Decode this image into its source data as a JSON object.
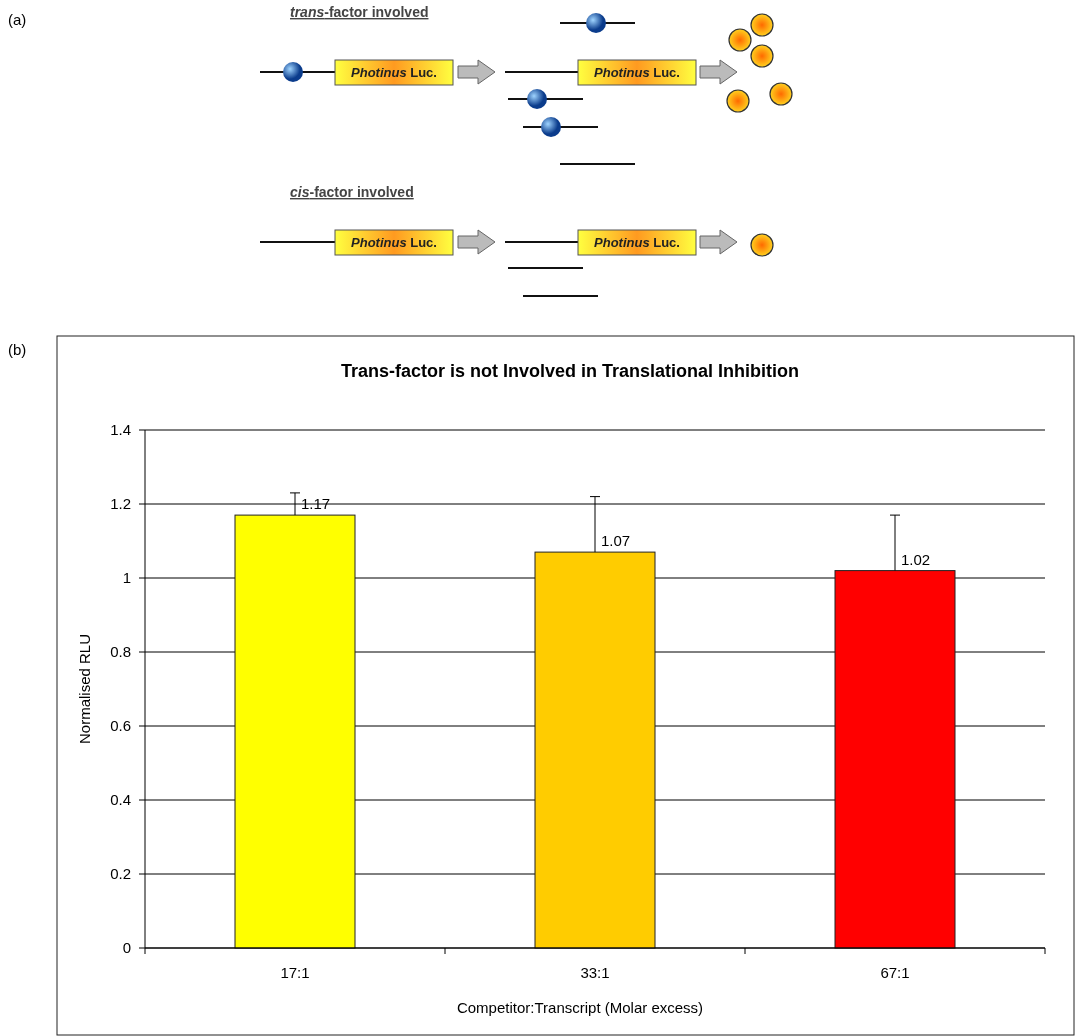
{
  "chart_data": [
    {
      "type": "other",
      "annotations": [
        "(a)",
        "trans-factor involved",
        "Photinus Luc.",
        "Photinus Luc.",
        "cis-factor involved",
        "Photinus Luc.",
        "Photinus Luc."
      ]
    },
    {
      "type": "bar",
      "title": "Trans-factor is not Involved in Translational Inhibition",
      "xlabel": "Competitor:Transcript (Molar excess)",
      "ylabel": "Normalised RLU",
      "annotations": [
        "(b)"
      ],
      "categories": [
        "17:1",
        "33:1",
        "67:1"
      ],
      "values": [
        1.17,
        1.07,
        1.02
      ],
      "colors": [
        "#ffff00",
        "#ffcc00",
        "#ff0000"
      ],
      "errors": [
        [
          1.17,
          1.23
        ],
        [
          1.07,
          1.22
        ],
        [
          1.02,
          1.17
        ]
      ],
      "ylim": [
        0,
        1.4
      ],
      "yticks": [
        0,
        0.2,
        0.4,
        0.6,
        0.8,
        1,
        1.2,
        1.4
      ],
      "grid": "y",
      "data_labels": true
    }
  ]
}
